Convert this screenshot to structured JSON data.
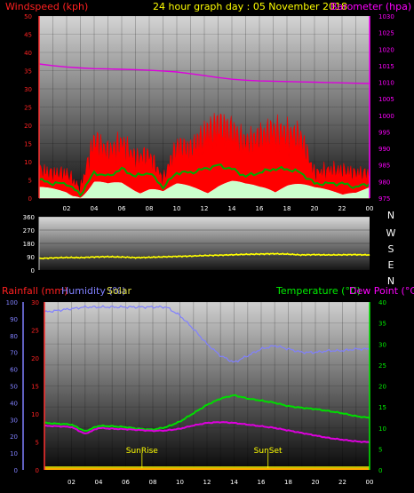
{
  "colors": {
    "windspeed": "#ff0000",
    "barometer": "#dd00dd",
    "title": "#ffff00",
    "wind_avg": "#00aa00",
    "gust_light": "#ccffcc",
    "direction": "#ffff00",
    "rainfall": "#ff2222",
    "humidity": "#8080ff",
    "temperature": "#00dd00",
    "dewpoint": "#dd00dd",
    "axis_left_top": "#ff2222",
    "axis_right_top": "#ff00ff",
    "axis_humidity": "#8080ff",
    "axis_rain": "#ff2222",
    "axis_temp": "#00ee00"
  },
  "header": {
    "windspeed_label": "Windspeed (kph)",
    "title": "24 hour graph day : 05 November 2018",
    "barometer_label": "Barometer (hpa)"
  },
  "lower_header": {
    "rainfall_label": "Rainfall (mm)",
    "humidity_label": "Humidity (%)",
    "solar_label": "Solar",
    "temperature_label": "Temperature (°C)",
    "dewpoint_label": "Dew Point (°C)"
  },
  "sun": {
    "rise_label": "SunRise",
    "set_label": "SunSet",
    "rise_hour": 7.2,
    "set_hour": 16.5
  },
  "compass": [
    "N",
    "W",
    "S",
    "E",
    "N"
  ],
  "chart_data": [
    {
      "type": "line",
      "id": "wind-barometer",
      "x_ticks": [
        "02",
        "04",
        "06",
        "08",
        "10",
        "12",
        "14",
        "16",
        "18",
        "20",
        "22",
        "00"
      ],
      "y_left_ticks": [
        "0",
        "5",
        "10",
        "15",
        "20",
        "25",
        "30",
        "35",
        "40",
        "45",
        "50"
      ],
      "y_right_ticks": [
        "975",
        "980",
        "985",
        "990",
        "995",
        "1000",
        "1005",
        "1010",
        "1015",
        "1020",
        "1025",
        "1030"
      ],
      "ylim_left": [
        0,
        50
      ],
      "ylim_right": [
        975,
        1030
      ],
      "series": [
        {
          "name": "Barometer (hpa)",
          "axis": "right",
          "x": [
            0,
            1,
            2,
            3,
            4,
            5,
            6,
            7,
            8,
            9,
            10,
            11,
            12,
            13,
            14,
            15,
            16,
            17,
            18,
            19,
            20,
            21,
            22,
            23,
            24
          ],
          "values": [
            1015.5,
            1015.0,
            1014.6,
            1014.3,
            1014.1,
            1014.0,
            1013.9,
            1013.8,
            1013.6,
            1013.4,
            1013.1,
            1012.6,
            1012.0,
            1011.4,
            1010.9,
            1010.6,
            1010.4,
            1010.3,
            1010.2,
            1010.1,
            1010.0,
            1009.9,
            1009.8,
            1009.7,
            1009.6
          ]
        },
        {
          "name": "Gust (max)",
          "axis": "left",
          "x": [
            0,
            1,
            2,
            3,
            4,
            5,
            6,
            7,
            8,
            9,
            10,
            11,
            12,
            13,
            14,
            15,
            16,
            17,
            18,
            19,
            20,
            21,
            22,
            23,
            24
          ],
          "values": [
            9,
            8,
            8,
            3,
            19,
            15,
            18,
            13,
            14,
            6,
            17,
            16,
            21,
            24,
            22,
            18,
            20,
            22,
            21,
            20,
            8,
            9,
            9,
            8,
            8
          ]
        },
        {
          "name": "Windspeed (avg)",
          "axis": "left",
          "x": [
            0,
            1,
            2,
            3,
            4,
            5,
            6,
            7,
            8,
            9,
            10,
            11,
            12,
            13,
            14,
            15,
            16,
            17,
            18,
            19,
            20,
            21,
            22,
            23,
            24
          ],
          "values": [
            5,
            4,
            4,
            1,
            7,
            6,
            8,
            6,
            7,
            3,
            7,
            7,
            8,
            9,
            8,
            6,
            7,
            8,
            8,
            7,
            4,
            4,
            4,
            3,
            4
          ]
        },
        {
          "name": "Windspeed (min)",
          "axis": "left",
          "x": [
            0,
            1,
            2,
            3,
            4,
            5,
            6,
            7,
            8,
            9,
            10,
            11,
            12,
            13,
            14,
            15,
            16,
            17,
            18,
            19,
            20,
            21,
            22,
            23,
            24
          ],
          "values": [
            3,
            3,
            3,
            0,
            5,
            4,
            5,
            4,
            4,
            2,
            4,
            4,
            4,
            5,
            5,
            4,
            4,
            5,
            5,
            4,
            3,
            3,
            3,
            2,
            3
          ]
        }
      ]
    },
    {
      "type": "line",
      "id": "wind-direction",
      "y_ticks": [
        "0",
        "90",
        "180",
        "270",
        "360"
      ],
      "ylim": [
        0,
        360
      ],
      "series": [
        {
          "name": "Wind direction",
          "x": [
            0,
            1,
            2,
            3,
            4,
            5,
            6,
            7,
            8,
            9,
            10,
            11,
            12,
            13,
            14,
            15,
            16,
            17,
            18,
            19,
            20,
            21,
            22,
            23,
            24
          ],
          "values": [
            78,
            82,
            85,
            84,
            88,
            90,
            88,
            84,
            86,
            89,
            92,
            94,
            98,
            100,
            103,
            106,
            108,
            110,
            108,
            102,
            104,
            102,
            103,
            104,
            102
          ]
        }
      ]
    },
    {
      "type": "line",
      "id": "temp-humidity",
      "x_ticks": [
        "02",
        "04",
        "06",
        "08",
        "10",
        "12",
        "14",
        "16",
        "18",
        "20",
        "22",
        "00"
      ],
      "y_humidity_ticks": [
        "0",
        "10",
        "20",
        "30",
        "40",
        "50",
        "60",
        "70",
        "80",
        "90",
        "100"
      ],
      "y_rain_ticks": [
        "0",
        "5",
        "10",
        "15",
        "20",
        "25",
        "30"
      ],
      "y_temp_ticks": [
        "0",
        "5",
        "10",
        "15",
        "20",
        "25",
        "30",
        "35",
        "40"
      ],
      "ylim_humidity": [
        0,
        100
      ],
      "ylim_rain": [
        0,
        30
      ],
      "ylim_temp": [
        0,
        40
      ],
      "series": [
        {
          "name": "Humidity (%)",
          "axis": "humidity",
          "x": [
            0,
            1,
            2,
            3,
            4,
            5,
            6,
            7,
            8,
            9,
            10,
            11,
            12,
            13,
            14,
            15,
            16,
            17,
            18,
            19,
            20,
            21,
            22,
            23,
            24
          ],
          "values": [
            94,
            95,
            96,
            97,
            97,
            97,
            97,
            97,
            97,
            97,
            92,
            84,
            75,
            68,
            64,
            68,
            72,
            74,
            72,
            70,
            70,
            71,
            71,
            72,
            72
          ]
        },
        {
          "name": "Temperature (°C)",
          "axis": "temp",
          "x": [
            0,
            1,
            2,
            3,
            4,
            5,
            6,
            7,
            8,
            9,
            10,
            11,
            12,
            13,
            14,
            15,
            16,
            17,
            18,
            19,
            20,
            21,
            22,
            23,
            24
          ],
          "values": [
            11.2,
            11.0,
            10.8,
            9.2,
            10.5,
            10.4,
            10.2,
            9.8,
            9.6,
            10.2,
            11.5,
            13.5,
            15.5,
            17.0,
            17.8,
            17.0,
            16.5,
            16.0,
            15.2,
            14.8,
            14.5,
            14.0,
            13.5,
            12.8,
            12.4
          ]
        },
        {
          "name": "Dew Point (°C)",
          "axis": "temp",
          "x": [
            0,
            1,
            2,
            3,
            4,
            5,
            6,
            7,
            8,
            9,
            10,
            11,
            12,
            13,
            14,
            15,
            16,
            17,
            18,
            19,
            20,
            21,
            22,
            23,
            24
          ],
          "values": [
            10.5,
            10.4,
            10.2,
            8.6,
            10.0,
            9.8,
            9.7,
            9.5,
            9.3,
            9.4,
            9.8,
            10.6,
            11.2,
            11.4,
            11.2,
            10.8,
            10.4,
            10.0,
            9.4,
            8.8,
            8.2,
            7.6,
            7.2,
            6.8,
            6.6
          ]
        },
        {
          "name": "Rainfall (mm)",
          "axis": "rain",
          "x": [
            0,
            24
          ],
          "values": [
            0,
            0
          ]
        }
      ]
    }
  ]
}
